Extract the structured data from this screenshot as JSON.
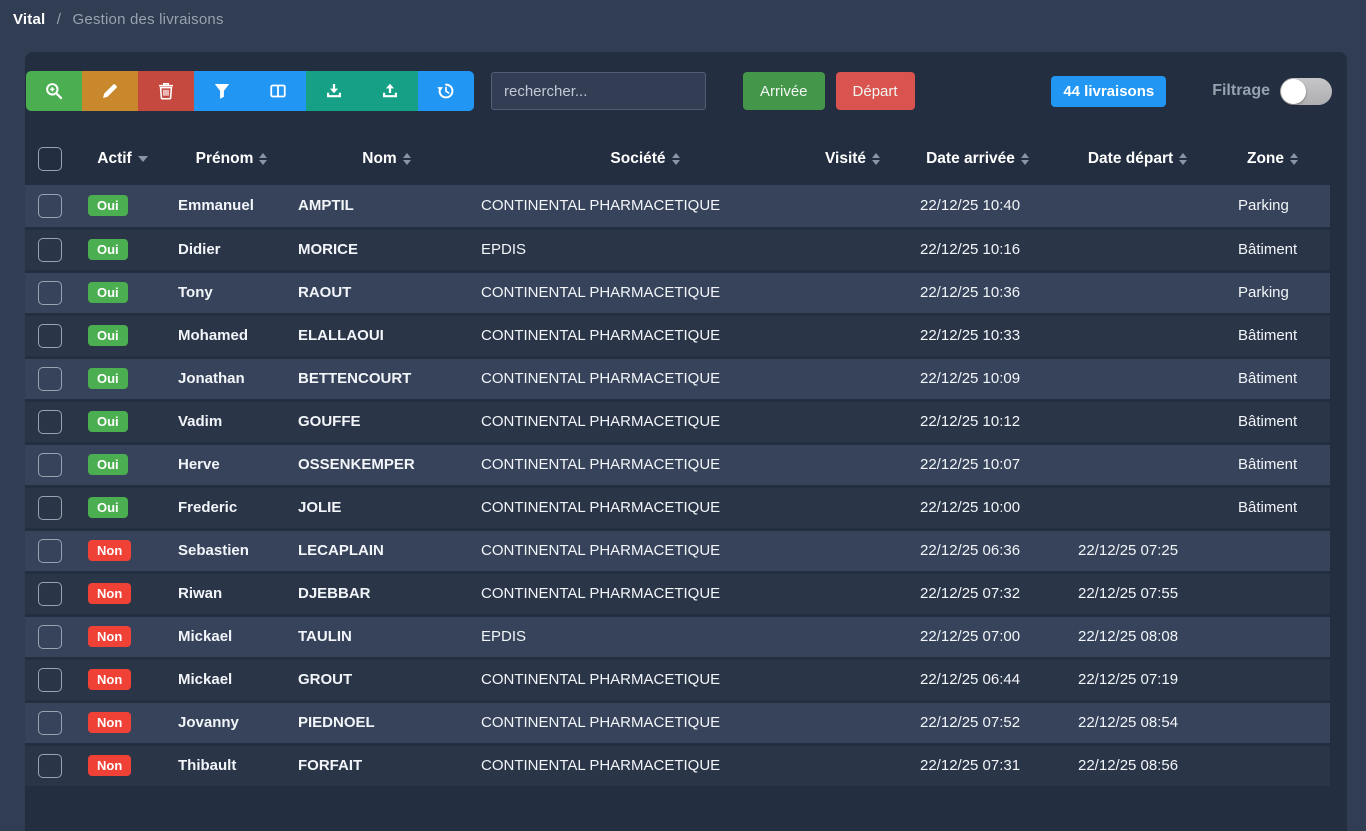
{
  "breadcrumb": {
    "root": "Vital",
    "separator": "/",
    "current": "Gestion des livraisons"
  },
  "toolbar": {
    "buttons": [
      {
        "name": "search-zoom",
        "icon": "magnifier-plus-icon",
        "color": "#4bae50"
      },
      {
        "name": "edit",
        "icon": "pencil-icon",
        "color": "#c8882b"
      },
      {
        "name": "delete",
        "icon": "trash-icon",
        "color": "#c5493f"
      },
      {
        "name": "filter",
        "icon": "funnel-icon",
        "color": "#2196f3"
      },
      {
        "name": "columns",
        "icon": "columns-icon",
        "color": "#2196f3"
      },
      {
        "name": "download",
        "icon": "download-icon",
        "color": "#16a085"
      },
      {
        "name": "upload",
        "icon": "upload-icon",
        "color": "#16a085"
      },
      {
        "name": "history",
        "icon": "history-icon",
        "color": "#2196f3"
      }
    ],
    "search_placeholder": "rechercher...",
    "arrivee_label": "Arrivée",
    "depart_label": "Départ",
    "count_badge": "44 livraisons",
    "filter_label": "Filtrage",
    "filter_toggle_state": "off"
  },
  "table": {
    "columns": [
      {
        "key": "select",
        "label": "",
        "type": "checkbox",
        "sort": "none"
      },
      {
        "key": "actif",
        "label": "Actif",
        "sort": "caret"
      },
      {
        "key": "prenom",
        "label": "Prénom",
        "sort": "both"
      },
      {
        "key": "nom",
        "label": "Nom",
        "sort": "both"
      },
      {
        "key": "societe",
        "label": "Société",
        "sort": "both"
      },
      {
        "key": "visite",
        "label": "Visité",
        "sort": "both"
      },
      {
        "key": "date_arrivee",
        "label": "Date arrivée",
        "sort": "both"
      },
      {
        "key": "date_depart",
        "label": "Date départ",
        "sort": "both"
      },
      {
        "key": "zone",
        "label": "Zone",
        "sort": "both"
      }
    ],
    "badge_yes": "Oui",
    "badge_no": "Non",
    "rows": [
      {
        "actif": "Oui",
        "prenom": "Emmanuel",
        "nom": "AMPTIL",
        "societe": "CONTINENTAL PHARMACETIQUE",
        "visite": "",
        "date_arrivee": "22/12/25 10:40",
        "date_depart": "",
        "zone": "Parking"
      },
      {
        "actif": "Oui",
        "prenom": "Didier",
        "nom": "MORICE",
        "societe": "EPDIS",
        "visite": "",
        "date_arrivee": "22/12/25 10:16",
        "date_depart": "",
        "zone": "Bâtiment"
      },
      {
        "actif": "Oui",
        "prenom": "Tony",
        "nom": "RAOUT",
        "societe": "CONTINENTAL PHARMACETIQUE",
        "visite": "",
        "date_arrivee": "22/12/25 10:36",
        "date_depart": "",
        "zone": "Parking"
      },
      {
        "actif": "Oui",
        "prenom": "Mohamed",
        "nom": "ELALLAOUI",
        "societe": "CONTINENTAL PHARMACETIQUE",
        "visite": "",
        "date_arrivee": "22/12/25 10:33",
        "date_depart": "",
        "zone": "Bâtiment"
      },
      {
        "actif": "Oui",
        "prenom": "Jonathan",
        "nom": "BETTENCOURT",
        "societe": "CONTINENTAL PHARMACETIQUE",
        "visite": "",
        "date_arrivee": "22/12/25 10:09",
        "date_depart": "",
        "zone": "Bâtiment"
      },
      {
        "actif": "Oui",
        "prenom": "Vadim",
        "nom": "GOUFFE",
        "societe": "CONTINENTAL PHARMACETIQUE",
        "visite": "",
        "date_arrivee": "22/12/25 10:12",
        "date_depart": "",
        "zone": "Bâtiment"
      },
      {
        "actif": "Oui",
        "prenom": "Herve",
        "nom": "OSSENKEMPER",
        "societe": "CONTINENTAL PHARMACETIQUE",
        "visite": "",
        "date_arrivee": "22/12/25 10:07",
        "date_depart": "",
        "zone": "Bâtiment"
      },
      {
        "actif": "Oui",
        "prenom": "Frederic",
        "nom": "JOLIE",
        "societe": "CONTINENTAL PHARMACETIQUE",
        "visite": "",
        "date_arrivee": "22/12/25 10:00",
        "date_depart": "",
        "zone": "Bâtiment"
      },
      {
        "actif": "Non",
        "prenom": "Sebastien",
        "nom": "LECAPLAIN",
        "societe": "CONTINENTAL PHARMACETIQUE",
        "visite": "",
        "date_arrivee": "22/12/25 06:36",
        "date_depart": "22/12/25 07:25",
        "zone": ""
      },
      {
        "actif": "Non",
        "prenom": "Riwan",
        "nom": "DJEBBAR",
        "societe": "CONTINENTAL PHARMACETIQUE",
        "visite": "",
        "date_arrivee": "22/12/25 07:32",
        "date_depart": "22/12/25 07:55",
        "zone": ""
      },
      {
        "actif": "Non",
        "prenom": "Mickael",
        "nom": "TAULIN",
        "societe": "EPDIS",
        "visite": "",
        "date_arrivee": "22/12/25 07:00",
        "date_depart": "22/12/25 08:08",
        "zone": ""
      },
      {
        "actif": "Non",
        "prenom": "Mickael",
        "nom": "GROUT",
        "societe": "CONTINENTAL PHARMACETIQUE",
        "visite": "",
        "date_arrivee": "22/12/25 06:44",
        "date_depart": "22/12/25 07:19",
        "zone": ""
      },
      {
        "actif": "Non",
        "prenom": "Jovanny",
        "nom": "PIEDNOEL",
        "societe": "CONTINENTAL PHARMACETIQUE",
        "visite": "",
        "date_arrivee": "22/12/25 07:52",
        "date_depart": "22/12/25 08:54",
        "zone": ""
      },
      {
        "actif": "Non",
        "prenom": "Thibault",
        "nom": "FORFAIT",
        "societe": "CONTINENTAL PHARMACETIQUE",
        "visite": "",
        "date_arrivee": "22/12/25 07:31",
        "date_depart": "22/12/25 08:56",
        "zone": ""
      }
    ]
  },
  "colors": {
    "badge_oui": "#4bae50",
    "badge_non": "#ef4136",
    "arrivee_button": "#44964a",
    "depart_button": "#d9534f",
    "count_badge": "#2196f3"
  }
}
